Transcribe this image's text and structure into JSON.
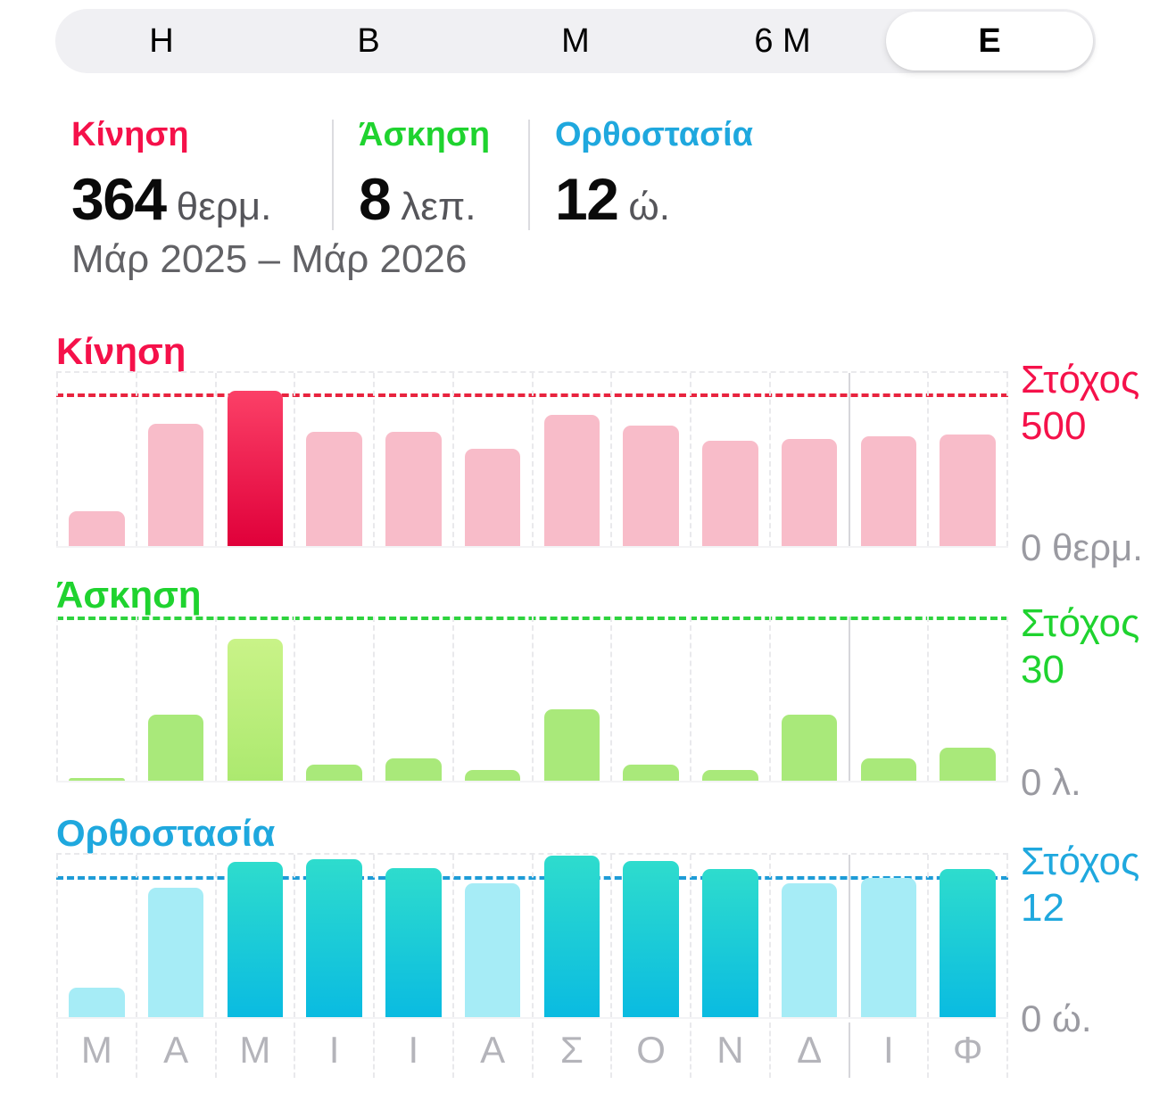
{
  "tabs": {
    "items": [
      {
        "label": "Η",
        "selected": false
      },
      {
        "label": "Β",
        "selected": false
      },
      {
        "label": "Μ",
        "selected": false
      },
      {
        "label": "6 Μ",
        "selected": false
      },
      {
        "label": "Ε",
        "selected": true
      }
    ]
  },
  "stats": {
    "move": {
      "label": "Κίνηση",
      "value": "364",
      "unit": "θερμ.",
      "color": "#F5114A"
    },
    "exercise": {
      "label": "Άσκηση",
      "value": "8",
      "unit": "λεπ.",
      "color": "#1FD32F"
    },
    "stand": {
      "label": "Ορθοστασία",
      "value": "12",
      "unit": "ώ.",
      "color": "#1FA8DE"
    }
  },
  "date_range": "Μάρ 2025 – Μάρ 2026",
  "chart_data": [
    {
      "type": "bar",
      "id": "move",
      "title": "Κίνηση",
      "goal_label": "Στόχος",
      "goal": 500,
      "goal_display": "500",
      "zero_label": "0 θερμ.",
      "categories": [
        "Μ",
        "Α",
        "Μ",
        "Ι",
        "Ι",
        "Α",
        "Σ",
        "Ο",
        "Ν",
        "Δ",
        "Ι",
        "Φ"
      ],
      "values": [
        115,
        400,
        510,
        375,
        375,
        320,
        430,
        395,
        345,
        350,
        360,
        365
      ],
      "ylim": [
        0,
        568
      ],
      "selected_index": 2,
      "accent": "#F5114A",
      "goal_line_color": "#E8243F",
      "bar_color": "#F8BCC9",
      "bar_highlight": [
        "#FB4067",
        "#E0003A"
      ],
      "grid": "dashed-vertical",
      "legend": "none"
    },
    {
      "type": "bar",
      "id": "exercise",
      "title": "Άσκηση",
      "goal_label": "Στόχος",
      "goal": 30,
      "goal_display": "30",
      "zero_label": "0 λ.",
      "categories": [
        "Μ",
        "Α",
        "Μ",
        "Ι",
        "Ι",
        "Α",
        "Σ",
        "Ο",
        "Ν",
        "Δ",
        "Ι",
        "Φ"
      ],
      "values": [
        0.5,
        12,
        26,
        3,
        4,
        2,
        13,
        3,
        2,
        12,
        4,
        6
      ],
      "ylim": [
        0,
        30
      ],
      "selected_index": 2,
      "accent": "#1FD32F",
      "goal_line_color": "#2ED33E",
      "bar_color": "#A9E97A",
      "bar_highlight": [
        "#C9F388",
        "#ACE96F"
      ],
      "grid": "dashed-vertical",
      "legend": "none"
    },
    {
      "type": "bar",
      "id": "stand",
      "title": "Ορθοστασία",
      "goal_label": "Στόχος",
      "goal": 12,
      "goal_display": "12",
      "zero_label": "0 ώ.",
      "categories": [
        "Μ",
        "Α",
        "Μ",
        "Ι",
        "Ι",
        "Α",
        "Σ",
        "Ο",
        "Ν",
        "Δ",
        "Ι",
        "Φ"
      ],
      "values": [
        2.5,
        11,
        13.2,
        13.4,
        12.7,
        11.4,
        13.7,
        13.3,
        12.6,
        11.4,
        11.8,
        12.6
      ],
      "ylim": [
        0,
        13.8
      ],
      "selected_index": 2,
      "accent": "#1FA8DE",
      "goal_line_color": "#1E9CD7",
      "bar_color": "#A6ECF6",
      "bar_highlight": [
        "#2EDCCD",
        "#0ABBE1"
      ],
      "grid": "dashed-vertical",
      "legend": "none"
    }
  ]
}
